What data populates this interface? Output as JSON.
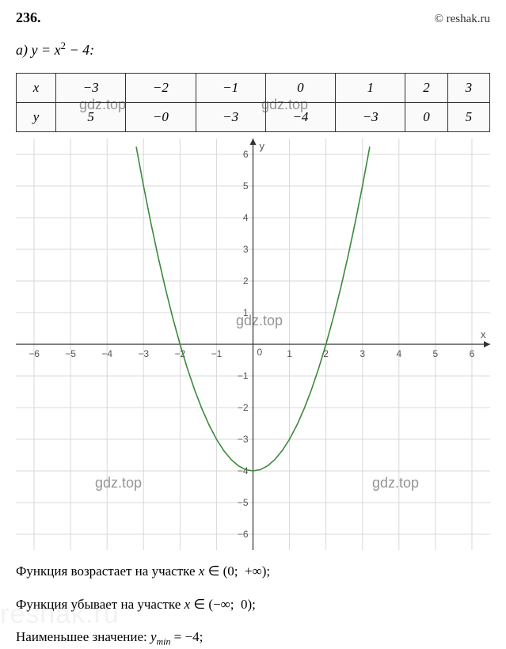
{
  "header": {
    "problem_number": "236",
    "copyright": "© reshak.ru"
  },
  "equation": {
    "prefix": "а) ",
    "formula_html": "y = x² − 4:"
  },
  "table": {
    "row_labels": [
      "x",
      "y"
    ],
    "x_values": [
      "−3",
      "−2",
      "−1",
      "0",
      "1",
      "2",
      "3"
    ],
    "y_values": [
      "5",
      "−0",
      "−3",
      "−4",
      "−3",
      "0",
      "5"
    ]
  },
  "chart": {
    "type": "line",
    "xlim": [
      -6.5,
      6.5
    ],
    "ylim": [
      -6.5,
      6.5
    ],
    "xticks": [
      -6,
      -5,
      -4,
      -3,
      -2,
      -1,
      0,
      1,
      2,
      3,
      4,
      5,
      6
    ],
    "yticks": [
      -6,
      -5,
      -4,
      -3,
      -2,
      -1,
      1,
      2,
      3,
      4,
      5,
      6
    ],
    "axis_labels": {
      "x": "x",
      "y": "y"
    },
    "grid_color": "#d8d8d8",
    "axis_color": "#333333",
    "background_color": "#ffffff",
    "tick_fontsize": 12,
    "tick_color": "#555555",
    "curve": {
      "color": "#3a8a3a",
      "width": 1.6,
      "points_x": [
        -3.2,
        -3.0,
        -2.8,
        -2.6,
        -2.4,
        -2.2,
        -2.0,
        -1.8,
        -1.6,
        -1.4,
        -1.2,
        -1.0,
        -0.8,
        -0.6,
        -0.4,
        -0.2,
        0.0,
        0.2,
        0.4,
        0.6,
        0.8,
        1.0,
        1.2,
        1.4,
        1.6,
        1.8,
        2.0,
        2.2,
        2.4,
        2.6,
        2.8,
        3.0,
        3.2
      ],
      "formula": "x*x - 4"
    }
  },
  "watermarks": {
    "text": "gdz.top",
    "bg_text": "reshak.ru"
  },
  "text_lines": {
    "line1": "Функция возрастает на участке x ∈ (0;  +∞);",
    "line2": "Функция убывает на участке x ∈ (−∞;  0);",
    "line3_prefix": "Наименьшее значение:  ",
    "line3_math": "y",
    "line3_sub": "min",
    "line3_suffix": " = −4;"
  }
}
